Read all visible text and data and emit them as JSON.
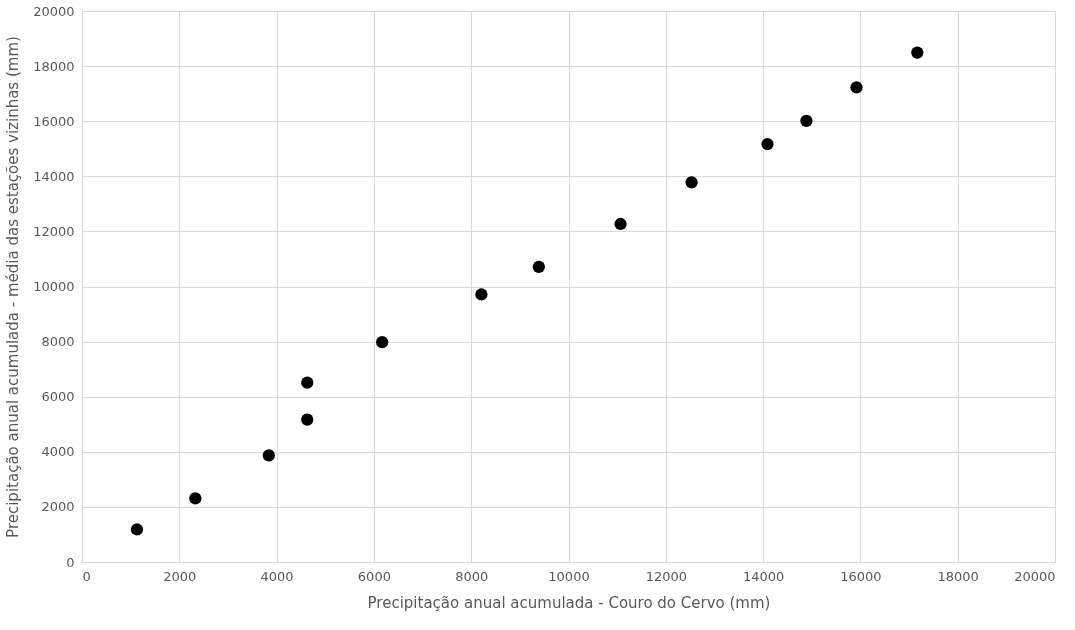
{
  "chart_data": {
    "type": "scatter",
    "xlabel": "Precipitação anual acumulada - Couro do Cervo (mm)",
    "ylabel": "Precipitação anual acumulada - média das estações vizinhas (mm)",
    "x": [
      1130,
      2330,
      3840,
      4630,
      4630,
      6170,
      8210,
      9390,
      11070,
      12530,
      14090,
      14890,
      15920,
      17170
    ],
    "series": [
      {
        "color": "#000000",
        "values": [
          1180,
          2310,
          3870,
          5170,
          6510,
          7980,
          9710,
          10710,
          12270,
          13780,
          15170,
          16010,
          17230,
          18490
        ]
      }
    ],
    "xlim": [
      0,
      20000
    ],
    "ylim": [
      0,
      20000
    ],
    "xticks": [
      0,
      2000,
      4000,
      6000,
      8000,
      10000,
      12000,
      14000,
      16000,
      18000,
      20000
    ],
    "yticks": [
      0,
      2000,
      4000,
      6000,
      8000,
      10000,
      12000,
      14000,
      16000,
      18000,
      20000
    ],
    "grid": true,
    "marker": "circle",
    "legend": false
  }
}
